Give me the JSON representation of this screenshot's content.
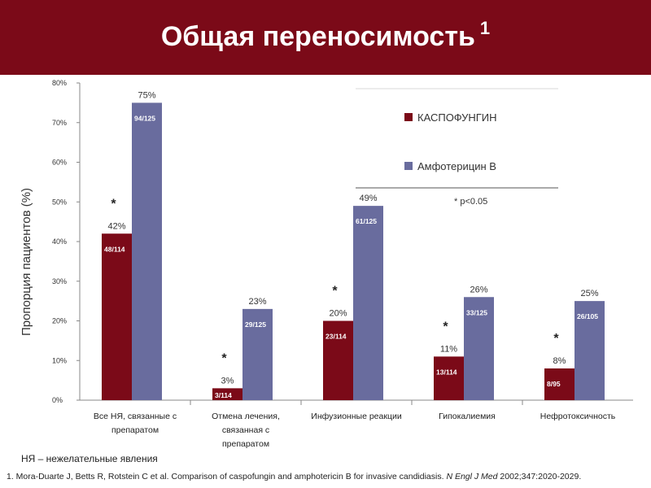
{
  "slide": {
    "title": "Общая переносимость",
    "title_superscript": "1",
    "abbreviation_note": "НЯ – нежелательные явления",
    "footnote": {
      "text": "1. Mora-Duarte J, Betts R, Rotstein C et al. Comparison of caspofungin and amphotericin B for invasive candidiasis.",
      "journal": "N Engl J Med",
      "citation": "2002;347:2020-2029."
    }
  },
  "colors": {
    "banner": "#7b0a18",
    "caspofungin": "#7b0a18",
    "amphotericin": "#696c9e"
  },
  "chart_data": {
    "type": "bar",
    "ylabel": "Пропорция пациентов (%)",
    "ylim": [
      0,
      80
    ],
    "ytick_labels": [
      "0%",
      "10%",
      "20%",
      "30%",
      "40%",
      "50%",
      "60%",
      "70%",
      "80%"
    ],
    "categories": [
      [
        "Все НЯ, связанные с",
        "препаратом"
      ],
      [
        "Отмена лечения,",
        "связанная с",
        "препаратом"
      ],
      [
        "Инфузионные реакции"
      ],
      [
        "Гипокалиемия"
      ],
      [
        "Нефротоксичность"
      ]
    ],
    "series": [
      {
        "name": "КАСПОФУНГИН",
        "values": [
          42,
          3,
          20,
          11,
          8
        ],
        "value_labels": [
          "42%",
          "3%",
          "20%",
          "11%",
          "8%"
        ],
        "counts": [
          "48/114",
          "3/114",
          "23/114",
          "13/114",
          "8/95"
        ]
      },
      {
        "name": "Амфотерицин В",
        "values": [
          75,
          23,
          49,
          26,
          25
        ],
        "value_labels": [
          "75%",
          "23%",
          "49%",
          "26%",
          "25%"
        ],
        "counts": [
          "94/125",
          "29/125",
          "61/125",
          "33/125",
          "26/105"
        ]
      }
    ],
    "significance_marker": "*",
    "significant_categories": [
      0,
      1,
      2,
      3,
      4
    ],
    "significance_note": "* p<0.05",
    "legend_position": "top-right",
    "grid": false
  }
}
